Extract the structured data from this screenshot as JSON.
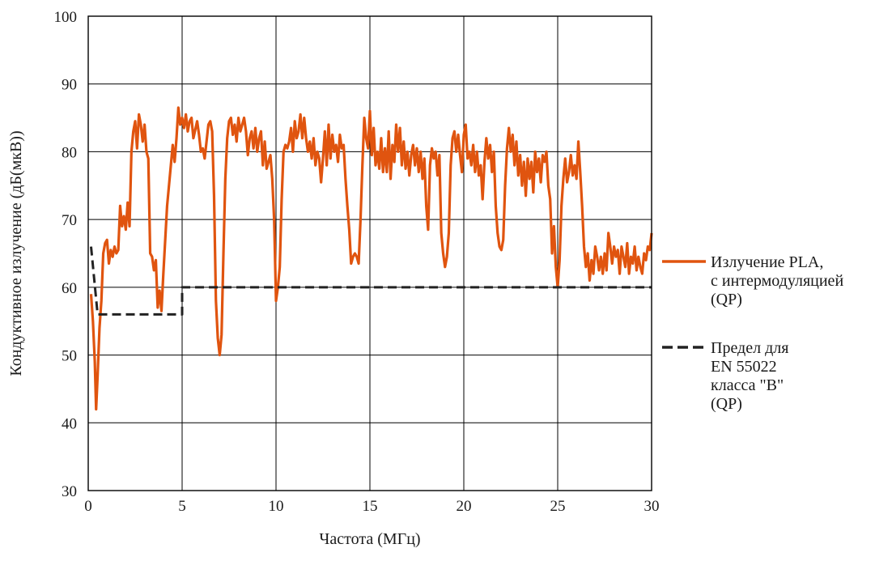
{
  "chart_data": {
    "type": "line",
    "title": "",
    "xlabel": "Частота (МГц)",
    "ylabel": "Кондуктивное излучение (дБ(мкВ))",
    "xlim": [
      0,
      30
    ],
    "ylim": [
      30,
      100
    ],
    "x_ticks": [
      "0",
      "5",
      "10",
      "15",
      "20",
      "25",
      "30"
    ],
    "y_ticks": [
      "30",
      "40",
      "50",
      "60",
      "70",
      "80",
      "90",
      "100"
    ],
    "grid": true,
    "legend_position": "right",
    "series": [
      {
        "name": "Излучение PLA, с интермодуляцией (QP)",
        "legend_lines": [
          "Излучение PLA,",
          "с интермодуляцией",
          "(QP)"
        ],
        "color": "#e0540f",
        "style": "solid",
        "points": [
          [
            0.15,
            59
          ],
          [
            0.25,
            55
          ],
          [
            0.35,
            49
          ],
          [
            0.42,
            42
          ],
          [
            0.5,
            47
          ],
          [
            0.6,
            54
          ],
          [
            0.7,
            58
          ],
          [
            0.8,
            65
          ],
          [
            0.9,
            66.5
          ],
          [
            1.0,
            67
          ],
          [
            1.1,
            63.5
          ],
          [
            1.2,
            65.5
          ],
          [
            1.3,
            64.5
          ],
          [
            1.4,
            66
          ],
          [
            1.5,
            65
          ],
          [
            1.6,
            65.5
          ],
          [
            1.7,
            72
          ],
          [
            1.8,
            69
          ],
          [
            1.9,
            70.5
          ],
          [
            2.0,
            68.5
          ],
          [
            2.1,
            72.5
          ],
          [
            2.2,
            69
          ],
          [
            2.3,
            80
          ],
          [
            2.4,
            83
          ],
          [
            2.5,
            84.5
          ],
          [
            2.6,
            80.5
          ],
          [
            2.7,
            85.5
          ],
          [
            2.8,
            84
          ],
          [
            2.9,
            81.5
          ],
          [
            3.0,
            84
          ],
          [
            3.1,
            80
          ],
          [
            3.2,
            79
          ],
          [
            3.3,
            65
          ],
          [
            3.4,
            64.5
          ],
          [
            3.5,
            62.5
          ],
          [
            3.6,
            64
          ],
          [
            3.7,
            57
          ],
          [
            3.8,
            59.5
          ],
          [
            3.9,
            56.5
          ],
          [
            4.0,
            62
          ],
          [
            4.2,
            72
          ],
          [
            4.4,
            78
          ],
          [
            4.5,
            81
          ],
          [
            4.6,
            78.5
          ],
          [
            4.7,
            82
          ],
          [
            4.8,
            86.5
          ],
          [
            4.9,
            84
          ],
          [
            5.0,
            85
          ],
          [
            5.1,
            83.5
          ],
          [
            5.2,
            85.5
          ],
          [
            5.3,
            83
          ],
          [
            5.4,
            84.5
          ],
          [
            5.5,
            85
          ],
          [
            5.6,
            82
          ],
          [
            5.8,
            84.5
          ],
          [
            5.9,
            82.5
          ],
          [
            6.0,
            80
          ],
          [
            6.1,
            80.5
          ],
          [
            6.2,
            79
          ],
          [
            6.4,
            84
          ],
          [
            6.5,
            84.5
          ],
          [
            6.6,
            83
          ],
          [
            6.7,
            73.5
          ],
          [
            6.8,
            58
          ],
          [
            6.9,
            52.5
          ],
          [
            7.0,
            50
          ],
          [
            7.1,
            53
          ],
          [
            7.2,
            65
          ],
          [
            7.3,
            76
          ],
          [
            7.4,
            82
          ],
          [
            7.5,
            84.5
          ],
          [
            7.6,
            85
          ],
          [
            7.7,
            82.5
          ],
          [
            7.8,
            84
          ],
          [
            7.9,
            81.5
          ],
          [
            8.0,
            85
          ],
          [
            8.1,
            83
          ],
          [
            8.2,
            84
          ],
          [
            8.3,
            85
          ],
          [
            8.4,
            83
          ],
          [
            8.5,
            79.5
          ],
          [
            8.6,
            82
          ],
          [
            8.7,
            83
          ],
          [
            8.8,
            80.5
          ],
          [
            8.9,
            83.5
          ],
          [
            9.0,
            80
          ],
          [
            9.1,
            82
          ],
          [
            9.2,
            83
          ],
          [
            9.3,
            78
          ],
          [
            9.4,
            81.5
          ],
          [
            9.5,
            77.5
          ],
          [
            9.6,
            78.5
          ],
          [
            9.7,
            79.5
          ],
          [
            9.8,
            76
          ],
          [
            9.9,
            70
          ],
          [
            10.0,
            58
          ],
          [
            10.1,
            60
          ],
          [
            10.2,
            63
          ],
          [
            10.3,
            73
          ],
          [
            10.4,
            80
          ],
          [
            10.5,
            81
          ],
          [
            10.6,
            80.5
          ],
          [
            10.7,
            81.5
          ],
          [
            10.8,
            83.5
          ],
          [
            10.9,
            80
          ],
          [
            11.0,
            84.5
          ],
          [
            11.1,
            82
          ],
          [
            11.2,
            83
          ],
          [
            11.3,
            85.5
          ],
          [
            11.4,
            82
          ],
          [
            11.5,
            85
          ],
          [
            11.6,
            82
          ],
          [
            11.7,
            80
          ],
          [
            11.8,
            81.5
          ],
          [
            11.9,
            79
          ],
          [
            12.0,
            82
          ],
          [
            12.1,
            78
          ],
          [
            12.2,
            80
          ],
          [
            12.3,
            79
          ],
          [
            12.4,
            75.5
          ],
          [
            12.5,
            79
          ],
          [
            12.6,
            83
          ],
          [
            12.7,
            78
          ],
          [
            12.8,
            84
          ],
          [
            12.9,
            79
          ],
          [
            13.0,
            82.5
          ],
          [
            13.1,
            80
          ],
          [
            13.2,
            81
          ],
          [
            13.3,
            78.5
          ],
          [
            13.4,
            82.5
          ],
          [
            13.5,
            80.5
          ],
          [
            13.6,
            81
          ],
          [
            13.7,
            76
          ],
          [
            13.8,
            72
          ],
          [
            13.9,
            68.5
          ],
          [
            14.0,
            63.5
          ],
          [
            14.1,
            64.5
          ],
          [
            14.2,
            65
          ],
          [
            14.3,
            64.5
          ],
          [
            14.4,
            63.5
          ],
          [
            14.5,
            70
          ],
          [
            14.6,
            78
          ],
          [
            14.7,
            85
          ],
          [
            14.8,
            82
          ],
          [
            14.9,
            80.5
          ],
          [
            15.0,
            86
          ],
          [
            15.1,
            79.5
          ],
          [
            15.2,
            83.5
          ],
          [
            15.3,
            78
          ],
          [
            15.4,
            80
          ],
          [
            15.5,
            77.5
          ],
          [
            15.6,
            82
          ],
          [
            15.7,
            77
          ],
          [
            15.8,
            80.5
          ],
          [
            15.9,
            77
          ],
          [
            16.0,
            83
          ],
          [
            16.1,
            76
          ],
          [
            16.2,
            81
          ],
          [
            16.3,
            78.5
          ],
          [
            16.4,
            84
          ],
          [
            16.5,
            80
          ],
          [
            16.6,
            83.5
          ],
          [
            16.7,
            78
          ],
          [
            16.8,
            81.5
          ],
          [
            16.9,
            77.5
          ],
          [
            17.0,
            80
          ],
          [
            17.1,
            76.5
          ],
          [
            17.2,
            79.5
          ],
          [
            17.3,
            81
          ],
          [
            17.4,
            78
          ],
          [
            17.5,
            80.5
          ],
          [
            17.6,
            77
          ],
          [
            17.7,
            80
          ],
          [
            17.8,
            76
          ],
          [
            17.9,
            79
          ],
          [
            18.0,
            72
          ],
          [
            18.1,
            68.5
          ],
          [
            18.2,
            78
          ],
          [
            18.3,
            80.5
          ],
          [
            18.4,
            79
          ],
          [
            18.5,
            80
          ],
          [
            18.6,
            76.5
          ],
          [
            18.7,
            79.5
          ],
          [
            18.8,
            68
          ],
          [
            18.9,
            65
          ],
          [
            19.0,
            63
          ],
          [
            19.1,
            64.5
          ],
          [
            19.2,
            68
          ],
          [
            19.3,
            78
          ],
          [
            19.4,
            82
          ],
          [
            19.5,
            83
          ],
          [
            19.6,
            80
          ],
          [
            19.7,
            82.5
          ],
          [
            19.8,
            79.5
          ],
          [
            19.9,
            77
          ],
          [
            20.0,
            82.5
          ],
          [
            20.1,
            84
          ],
          [
            20.2,
            79
          ],
          [
            20.3,
            80
          ],
          [
            20.4,
            78
          ],
          [
            20.5,
            81
          ],
          [
            20.6,
            77
          ],
          [
            20.7,
            80
          ],
          [
            20.8,
            76.5
          ],
          [
            20.9,
            78
          ],
          [
            21.0,
            73
          ],
          [
            21.1,
            78.5
          ],
          [
            21.2,
            82
          ],
          [
            21.3,
            79
          ],
          [
            21.4,
            81
          ],
          [
            21.5,
            77
          ],
          [
            21.6,
            80
          ],
          [
            21.7,
            72
          ],
          [
            21.8,
            68
          ],
          [
            21.9,
            66
          ],
          [
            22.0,
            65.5
          ],
          [
            22.1,
            67
          ],
          [
            22.2,
            75
          ],
          [
            22.3,
            80.5
          ],
          [
            22.4,
            83.5
          ],
          [
            22.5,
            80
          ],
          [
            22.6,
            82.5
          ],
          [
            22.7,
            78
          ],
          [
            22.8,
            81.5
          ],
          [
            22.9,
            76.5
          ],
          [
            23.0,
            79.5
          ],
          [
            23.1,
            75
          ],
          [
            23.2,
            78.5
          ],
          [
            23.3,
            73.5
          ],
          [
            23.4,
            79
          ],
          [
            23.5,
            76
          ],
          [
            23.6,
            78.5
          ],
          [
            23.7,
            74
          ],
          [
            23.8,
            80
          ],
          [
            23.9,
            77
          ],
          [
            24.0,
            79
          ],
          [
            24.1,
            75.5
          ],
          [
            24.2,
            79.5
          ],
          [
            24.3,
            78.5
          ],
          [
            24.4,
            80
          ],
          [
            24.5,
            75
          ],
          [
            24.6,
            73
          ],
          [
            24.7,
            65
          ],
          [
            24.8,
            69
          ],
          [
            24.9,
            63
          ],
          [
            25.0,
            60
          ],
          [
            25.1,
            64
          ],
          [
            25.2,
            72
          ],
          [
            25.3,
            76
          ],
          [
            25.4,
            79
          ],
          [
            25.5,
            75.5
          ],
          [
            25.6,
            77
          ],
          [
            25.7,
            79.5
          ],
          [
            25.8,
            76.5
          ],
          [
            25.9,
            78
          ],
          [
            26.0,
            76
          ],
          [
            26.1,
            81.5
          ],
          [
            26.2,
            77
          ],
          [
            26.3,
            72
          ],
          [
            26.4,
            66
          ],
          [
            26.5,
            63
          ],
          [
            26.6,
            65
          ],
          [
            26.7,
            61
          ],
          [
            26.8,
            64
          ],
          [
            26.9,
            62
          ],
          [
            27.0,
            66
          ],
          [
            27.1,
            64.5
          ],
          [
            27.2,
            62.5
          ],
          [
            27.3,
            64.5
          ],
          [
            27.4,
            62
          ],
          [
            27.5,
            65
          ],
          [
            27.6,
            62.5
          ],
          [
            27.7,
            68
          ],
          [
            27.8,
            66
          ],
          [
            27.9,
            63.5
          ],
          [
            28.0,
            66
          ],
          [
            28.1,
            64.5
          ],
          [
            28.2,
            65.5
          ],
          [
            28.3,
            62
          ],
          [
            28.4,
            66
          ],
          [
            28.5,
            64.5
          ],
          [
            28.6,
            63
          ],
          [
            28.7,
            66.5
          ],
          [
            28.8,
            62
          ],
          [
            28.9,
            64.5
          ],
          [
            29.0,
            63.5
          ],
          [
            29.1,
            66
          ],
          [
            29.2,
            62.5
          ],
          [
            29.3,
            64.5
          ],
          [
            29.4,
            63
          ],
          [
            29.5,
            62
          ],
          [
            29.6,
            65
          ],
          [
            29.7,
            64
          ],
          [
            29.8,
            66
          ],
          [
            29.9,
            65.5
          ],
          [
            30.0,
            68
          ]
        ]
      },
      {
        "name": "Предел для EN 55022 класса \"B\" (QP)",
        "legend_lines": [
          "Предел для",
          "EN 55022",
          "класса \"B\"",
          "(QP)"
        ],
        "color": "#222222",
        "style": "dashed",
        "points": [
          [
            0.15,
            66
          ],
          [
            0.5,
            56
          ],
          [
            5.0,
            56
          ],
          [
            5.0,
            60
          ],
          [
            30.0,
            60
          ]
        ]
      }
    ]
  }
}
